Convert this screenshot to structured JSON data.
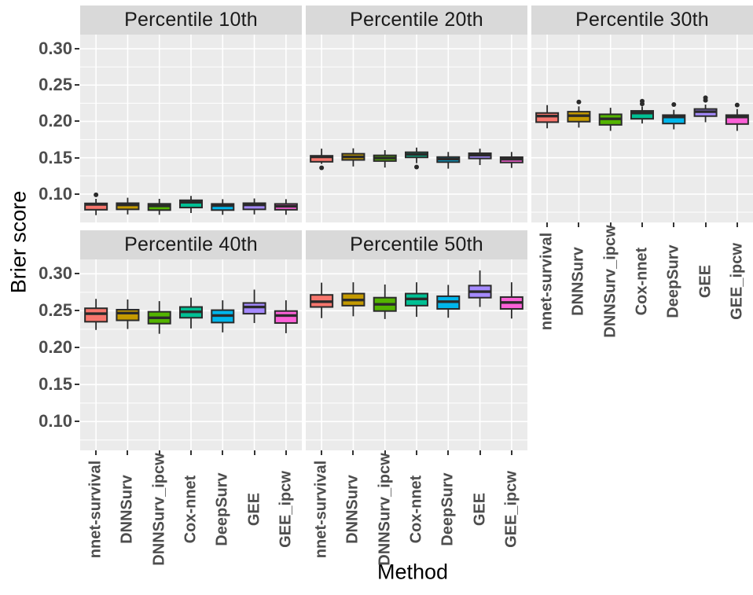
{
  "figure": {
    "ylabel": "Brier score",
    "xlabel": "Method"
  },
  "chart_data": {
    "type": "boxplot",
    "facets": true,
    "title": "",
    "xlabel": "Method",
    "ylabel": "Brier score",
    "legend": "none",
    "grid": "major-and-minor-white-on-grey",
    "panel_bg": "#ebebeb",
    "strip_bg": "#d9d9d9",
    "grid_color": "#ffffff",
    "box_outline_color": "#2a2a2a",
    "y_ticks": [
      0.3,
      0.25,
      0.2,
      0.15,
      0.1
    ],
    "y_minor_ticks": [
      0.075,
      0.125,
      0.175,
      0.225,
      0.275
    ],
    "ylim": [
      0.061,
      0.3195
    ],
    "methods": [
      "nnet-survival",
      "DNNSurv",
      "DNNSurv_ipcw",
      "Cox-nnet",
      "DeepSurv",
      "GEE",
      "GEE_ipcw"
    ],
    "colors": [
      "#F8766D",
      "#C49A00",
      "#53B400",
      "#00C094",
      "#00B6EB",
      "#A58AFF",
      "#FB61D7"
    ],
    "panels": [
      {
        "title": "Percentile 10th",
        "boxes": [
          {
            "method": "nnet-survival",
            "low": 0.071,
            "q1": 0.0785,
            "median": 0.0858,
            "q3": 0.0872,
            "high": 0.0935,
            "outliers": [
              0.099
            ]
          },
          {
            "method": "DNNSurv",
            "low": 0.072,
            "q1": 0.079,
            "median": 0.0852,
            "q3": 0.0875,
            "high": 0.095,
            "outliers": []
          },
          {
            "method": "DNNSurv_ipcw",
            "low": 0.0715,
            "q1": 0.078,
            "median": 0.0838,
            "q3": 0.0866,
            "high": 0.0935,
            "outliers": []
          },
          {
            "method": "Cox-nnet",
            "low": 0.074,
            "q1": 0.0815,
            "median": 0.0888,
            "q3": 0.0915,
            "high": 0.0975,
            "outliers": []
          },
          {
            "method": "DeepSurv",
            "low": 0.0715,
            "q1": 0.078,
            "median": 0.0842,
            "q3": 0.0865,
            "high": 0.093,
            "outliers": []
          },
          {
            "method": "GEE",
            "low": 0.072,
            "q1": 0.079,
            "median": 0.0852,
            "q3": 0.0875,
            "high": 0.094,
            "outliers": []
          },
          {
            "method": "GEE_ipcw",
            "low": 0.0715,
            "q1": 0.0785,
            "median": 0.0832,
            "q3": 0.0865,
            "high": 0.093,
            "outliers": []
          }
        ]
      },
      {
        "title": "Percentile 20th",
        "boxes": [
          {
            "method": "nnet-survival",
            "low": 0.1415,
            "q1": 0.1445,
            "median": 0.1513,
            "q3": 0.1527,
            "high": 0.1625,
            "outliers": [
              0.1362
            ]
          },
          {
            "method": "DNNSurv",
            "low": 0.138,
            "q1": 0.147,
            "median": 0.1512,
            "q3": 0.1555,
            "high": 0.163,
            "outliers": []
          },
          {
            "method": "DNNSurv_ipcw",
            "low": 0.1365,
            "q1": 0.1455,
            "median": 0.1496,
            "q3": 0.1533,
            "high": 0.1605,
            "outliers": []
          },
          {
            "method": "Cox-nnet",
            "low": 0.1425,
            "q1": 0.1505,
            "median": 0.1545,
            "q3": 0.1576,
            "high": 0.164,
            "outliers": [
              0.1373
            ]
          },
          {
            "method": "DeepSurv",
            "low": 0.135,
            "q1": 0.144,
            "median": 0.148,
            "q3": 0.151,
            "high": 0.158,
            "outliers": []
          },
          {
            "method": "GEE",
            "low": 0.14,
            "q1": 0.149,
            "median": 0.1535,
            "q3": 0.1562,
            "high": 0.1625,
            "outliers": []
          },
          {
            "method": "GEE_ipcw",
            "low": 0.136,
            "q1": 0.1435,
            "median": 0.148,
            "q3": 0.1508,
            "high": 0.158,
            "outliers": []
          }
        ]
      },
      {
        "title": "Percentile 30th",
        "boxes": [
          {
            "method": "nnet-survival",
            "low": 0.1905,
            "q1": 0.199,
            "median": 0.2073,
            "q3": 0.2116,
            "high": 0.2225,
            "outliers": []
          },
          {
            "method": "DNNSurv",
            "low": 0.1915,
            "q1": 0.1997,
            "median": 0.2079,
            "q3": 0.2134,
            "high": 0.2207,
            "outliers": [
              0.2268
            ]
          },
          {
            "method": "DNNSurv_ipcw",
            "low": 0.187,
            "q1": 0.1953,
            "median": 0.2036,
            "q3": 0.2098,
            "high": 0.2188,
            "outliers": []
          },
          {
            "method": "Cox-nnet",
            "low": 0.1971,
            "q1": 0.2036,
            "median": 0.2116,
            "q3": 0.2145,
            "high": 0.2207,
            "outliers": [
              0.2242,
              0.2279
            ]
          },
          {
            "method": "DeepSurv",
            "low": 0.1891,
            "q1": 0.1971,
            "median": 0.2062,
            "q3": 0.2087,
            "high": 0.216,
            "outliers": [
              0.2232
            ]
          },
          {
            "method": "GEE",
            "low": 0.1989,
            "q1": 0.2073,
            "median": 0.2134,
            "q3": 0.2171,
            "high": 0.2232,
            "outliers": [
              0.229,
              0.2326
            ]
          },
          {
            "method": "GEE_ipcw",
            "low": 0.187,
            "q1": 0.1964,
            "median": 0.2062,
            "q3": 0.2087,
            "high": 0.2171,
            "outliers": [
              0.2225
            ]
          }
        ]
      },
      {
        "title": "Percentile 40th",
        "boxes": [
          {
            "method": "nnet-survival",
            "low": 0.224,
            "q1": 0.2351,
            "median": 0.246,
            "q3": 0.2533,
            "high": 0.266,
            "outliers": []
          },
          {
            "method": "DNNSurv",
            "low": 0.2253,
            "q1": 0.237,
            "median": 0.2468,
            "q3": 0.2514,
            "high": 0.2652,
            "outliers": []
          },
          {
            "method": "DNNSurv_ipcw",
            "low": 0.2188,
            "q1": 0.2326,
            "median": 0.2405,
            "q3": 0.2486,
            "high": 0.263,
            "outliers": []
          },
          {
            "method": "Cox-nnet",
            "low": 0.226,
            "q1": 0.2405,
            "median": 0.2486,
            "q3": 0.2551,
            "high": 0.2677,
            "outliers": []
          },
          {
            "method": "DeepSurv",
            "low": 0.2207,
            "q1": 0.234,
            "median": 0.2435,
            "q3": 0.2508,
            "high": 0.2641,
            "outliers": []
          },
          {
            "method": "GEE",
            "low": 0.2334,
            "q1": 0.246,
            "median": 0.2551,
            "q3": 0.2605,
            "high": 0.2786,
            "outliers": []
          },
          {
            "method": "GEE_ipcw",
            "low": 0.2196,
            "q1": 0.2334,
            "median": 0.2435,
            "q3": 0.2496,
            "high": 0.2641,
            "outliers": []
          }
        ]
      },
      {
        "title": "Percentile 50th",
        "boxes": [
          {
            "method": "nnet-survival",
            "low": 0.24,
            "q1": 0.2551,
            "median": 0.2623,
            "q3": 0.2714,
            "high": 0.288,
            "outliers": []
          },
          {
            "method": "DNNSurv",
            "low": 0.2425,
            "q1": 0.2569,
            "median": 0.2645,
            "q3": 0.2732,
            "high": 0.2885,
            "outliers": []
          },
          {
            "method": "DNNSurv_ipcw",
            "low": 0.2388,
            "q1": 0.2496,
            "median": 0.2587,
            "q3": 0.2677,
            "high": 0.2855,
            "outliers": []
          },
          {
            "method": "Cox-nnet",
            "low": 0.2417,
            "q1": 0.2569,
            "median": 0.266,
            "q3": 0.2732,
            "high": 0.2885,
            "outliers": []
          },
          {
            "method": "DeepSurv",
            "low": 0.2405,
            "q1": 0.2525,
            "median": 0.2623,
            "q3": 0.2696,
            "high": 0.285,
            "outliers": []
          },
          {
            "method": "GEE",
            "low": 0.2551,
            "q1": 0.2677,
            "median": 0.2758,
            "q3": 0.284,
            "high": 0.3045,
            "outliers": []
          },
          {
            "method": "GEE_ipcw",
            "low": 0.2394,
            "q1": 0.2525,
            "median": 0.2612,
            "q3": 0.2685,
            "high": 0.2885,
            "outliers": []
          }
        ]
      }
    ]
  }
}
